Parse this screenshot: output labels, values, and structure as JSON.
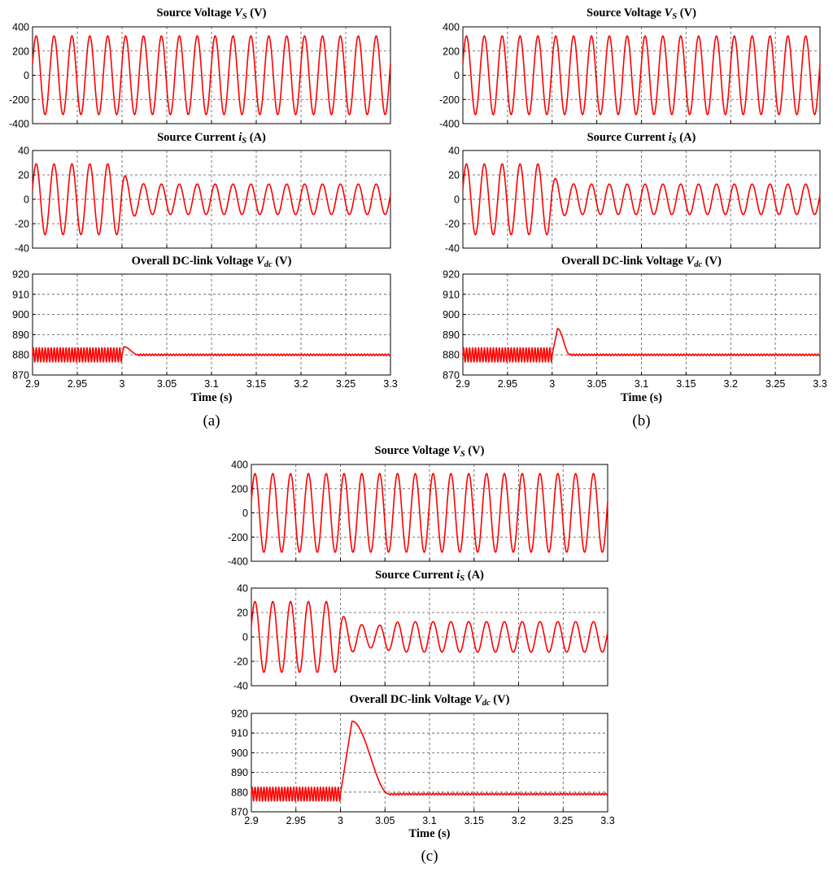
{
  "colors": {
    "trace": "#ff0000",
    "axes": "#000000",
    "grid": "#555555",
    "background": "#ffffff"
  },
  "chart_data": [
    {
      "caption": "(a)",
      "type": "line",
      "xlabel": "Time (s)",
      "xlim": [
        2.9,
        3.3
      ],
      "xticks": [
        "2.9",
        "2.95",
        "3",
        "3.05",
        "3.1",
        "3.15",
        "3.2",
        "3.25",
        "3.3"
      ],
      "grid": true,
      "subplots": [
        {
          "title_main": "Source Voltage ",
          "title_sym": "V",
          "title_sub": "S",
          "title_unit": " (V)",
          "ylim": [
            -400,
            400
          ],
          "yticks": [
            "400",
            "200",
            "0",
            "-200",
            "-400"
          ],
          "series": {
            "kind": "sine",
            "frequency_hz": 50,
            "amplitude": 325
          }
        },
        {
          "title_main": "Source Current ",
          "title_sym": "i",
          "title_sub": "S",
          "title_unit": " (A)",
          "ylim": [
            -40,
            40
          ],
          "yticks": [
            "40",
            "20",
            "0",
            "-20",
            "-40"
          ],
          "series": {
            "kind": "sine_step",
            "frequency_hz": 50,
            "amplitude_before": 29,
            "amplitude_after": 12.5,
            "step_time": 3.0,
            "transient_peak": 25,
            "transient_trough": -15
          }
        },
        {
          "title_main": "Overall DC-link Voltage ",
          "title_sym": "V",
          "title_sub": "dc",
          "title_unit": " (V)",
          "ylim": [
            870,
            920
          ],
          "yticks": [
            "920",
            "910",
            "900",
            "890",
            "880",
            "870"
          ],
          "series": {
            "kind": "dc_link",
            "level": 880,
            "ripple_before": 3.5,
            "ripple_after": 0.4,
            "step_time": 3.0,
            "peak": 884,
            "peak_time": 3.002,
            "settle_time": 3.018
          }
        }
      ]
    },
    {
      "caption": "(b)",
      "type": "line",
      "xlabel": "Time (s)",
      "xlim": [
        2.9,
        3.3
      ],
      "xticks": [
        "2.9",
        "2.95",
        "3",
        "3.05",
        "3.1",
        "3.15",
        "3.2",
        "3.25",
        "3.3"
      ],
      "grid": true,
      "subplots": [
        {
          "title_main": "Source Voltage ",
          "title_sym": "V",
          "title_sub": "S",
          "title_unit": " (V)",
          "ylim": [
            -400,
            400
          ],
          "yticks": [
            "400",
            "200",
            "0",
            "-200",
            "-400"
          ],
          "series": {
            "kind": "sine",
            "frequency_hz": 50,
            "amplitude": 325
          }
        },
        {
          "title_main": "Source Current ",
          "title_sym": "i",
          "title_sub": "S",
          "title_unit": " (A)",
          "ylim": [
            -40,
            40
          ],
          "yticks": [
            "40",
            "20",
            "0",
            "-20",
            "-40"
          ],
          "series": {
            "kind": "sine_step",
            "frequency_hz": 50,
            "amplitude_before": 29,
            "amplitude_after": 12.5,
            "step_time": 3.0,
            "transient_peak": 21,
            "transient_trough": -13
          }
        },
        {
          "title_main": "Overall DC-link Voltage ",
          "title_sym": "V",
          "title_sub": "dc",
          "title_unit": " (V)",
          "ylim": [
            870,
            920
          ],
          "yticks": [
            "920",
            "910",
            "900",
            "890",
            "880",
            "870"
          ],
          "series": {
            "kind": "dc_link",
            "level": 880,
            "ripple_before": 3.5,
            "ripple_after": 0.4,
            "step_time": 3.0,
            "peak": 893,
            "peak_time": 3.006,
            "settle_time": 3.02
          }
        }
      ]
    },
    {
      "caption": "(c)",
      "type": "line",
      "xlabel": "Time (s)",
      "xlim": [
        2.9,
        3.3
      ],
      "xticks": [
        "2.9",
        "2.95",
        "3",
        "3.05",
        "3.1",
        "3.15",
        "3.2",
        "3.25",
        "3.3"
      ],
      "grid": true,
      "subplots": [
        {
          "title_main": "Source Voltage ",
          "title_sym": "V",
          "title_sub": "S",
          "title_unit": " (V)",
          "ylim": [
            -400,
            400
          ],
          "yticks": [
            "400",
            "200",
            "0",
            "-200",
            "-400"
          ],
          "series": {
            "kind": "sine",
            "frequency_hz": 50,
            "amplitude": 325
          }
        },
        {
          "title_main": "Source Current ",
          "title_sym": "i",
          "title_sub": "S",
          "title_unit": " (A)",
          "ylim": [
            -40,
            40
          ],
          "yticks": [
            "40",
            "20",
            "0",
            "-20",
            "-40"
          ],
          "series": {
            "kind": "sine_step",
            "frequency_hz": 50,
            "amplitude_before": 29,
            "amplitude_after": 12.5,
            "step_time": 3.0,
            "transient_peak": 21,
            "transient_trough": -13,
            "dip_amplitude": 9
          }
        },
        {
          "title_main": "Overall DC-link Voltage ",
          "title_sym": "V",
          "title_sub": "dc",
          "title_unit": " (V)",
          "ylim": [
            870,
            920
          ],
          "yticks": [
            "920",
            "910",
            "900",
            "890",
            "880",
            "870"
          ],
          "series": {
            "kind": "dc_link",
            "level": 879,
            "ripple_before": 3.5,
            "ripple_after": 0.4,
            "step_time": 3.0,
            "peak": 916,
            "peak_time": 3.013,
            "settle_time": 3.055
          }
        }
      ]
    }
  ]
}
